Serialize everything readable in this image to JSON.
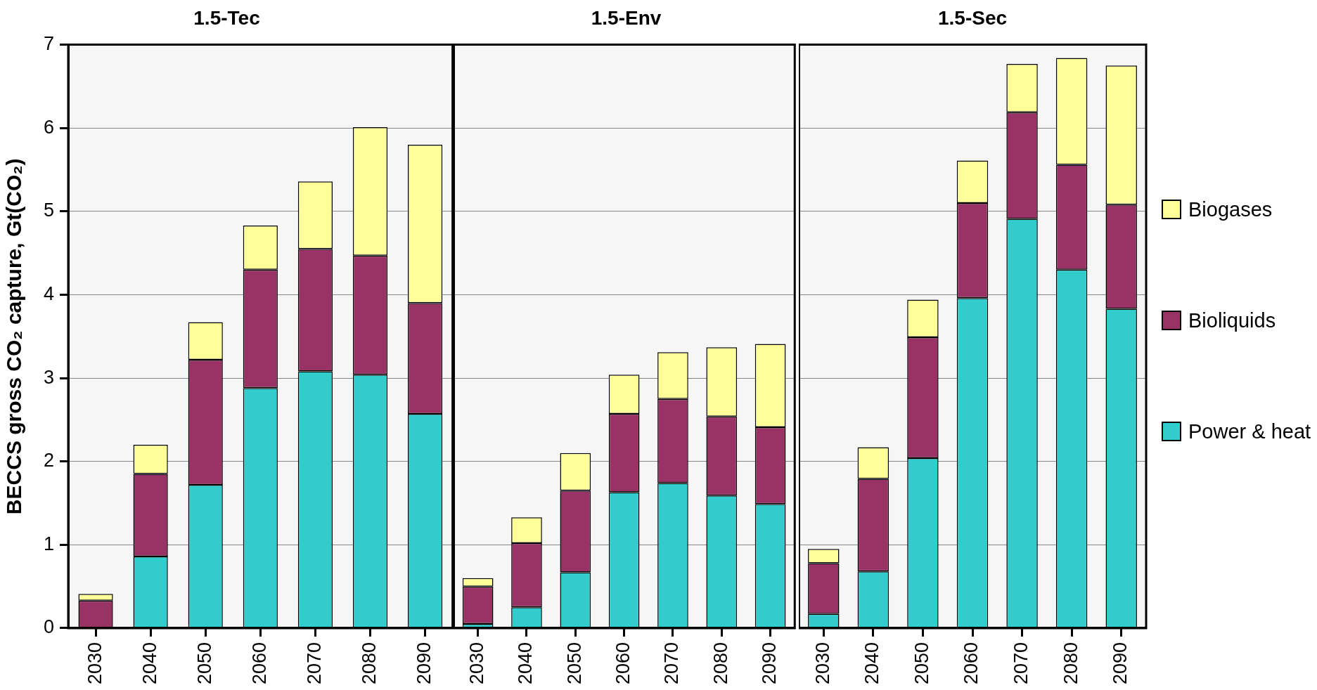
{
  "chart_data": [
    {
      "type": "bar",
      "stacked": true,
      "title": "1.5-Tec",
      "ylabel": "BECCS gross CO₂ capture, Gt(CO₂)",
      "categories": [
        "2030",
        "2040",
        "2050",
        "2060",
        "2070",
        "2080",
        "2090"
      ],
      "series": [
        {
          "color": "#33cccc",
          "values": [
            0,
            0.86,
            1.72,
            2.88,
            3.08,
            3.04,
            2.57
          ]
        },
        {
          "color": "#993366",
          "values": [
            0.33,
            0.99,
            1.5,
            1.42,
            1.47,
            1.43,
            1.33
          ]
        },
        {
          "color": "#ffff99",
          "values": [
            0.08,
            0.35,
            0.45,
            0.53,
            0.81,
            1.54,
            1.9
          ]
        }
      ],
      "ylim": [
        0,
        7
      ],
      "yticks": [
        0,
        1,
        2,
        3,
        4,
        5,
        6,
        7
      ],
      "grid": "y"
    },
    {
      "type": "bar",
      "stacked": true,
      "title": "1.5-Env",
      "categories": [
        "2030",
        "2040",
        "2050",
        "2060",
        "2070",
        "2080",
        "2090"
      ],
      "series": [
        {
          "color": "#33cccc",
          "values": [
            0.05,
            0.25,
            0.67,
            1.63,
            1.74,
            1.59,
            1.49
          ]
        },
        {
          "color": "#993366",
          "values": [
            0.45,
            0.77,
            0.98,
            0.94,
            1.01,
            0.95,
            0.92
          ]
        },
        {
          "color": "#ffff99",
          "values": [
            0.1,
            0.31,
            0.45,
            0.47,
            0.56,
            0.83,
            1
          ]
        }
      ],
      "ylim": [
        0,
        7
      ],
      "yticks": [
        0,
        1,
        2,
        3,
        4,
        5,
        6,
        7
      ],
      "grid": "y",
      "tick_labels": "x"
    },
    {
      "type": "bar",
      "stacked": true,
      "title": "1.5-Sec",
      "categories": [
        "2030",
        "2040",
        "2050",
        "2060",
        "2070",
        "2080",
        "2090"
      ],
      "series": [
        {
          "name": "Power & heat",
          "color": "#33cccc",
          "values": [
            0.17,
            0.68,
            2.04,
            3.96,
            4.91,
            4.3,
            3.83
          ]
        },
        {
          "name": "Bioliquids",
          "color": "#993366",
          "values": [
            0.61,
            1.11,
            1.45,
            1.14,
            1.28,
            1.26,
            1.25
          ]
        },
        {
          "name": "Biogases",
          "color": "#ffff99",
          "values": [
            0.17,
            0.38,
            0.45,
            0.51,
            0.58,
            1.28,
            1.67
          ]
        }
      ],
      "ylim": [
        0,
        7
      ],
      "yticks": [
        0,
        1,
        2,
        3,
        4,
        5,
        6,
        7
      ],
      "grid": "y",
      "tick_labels": "x",
      "legend": "right"
    }
  ]
}
